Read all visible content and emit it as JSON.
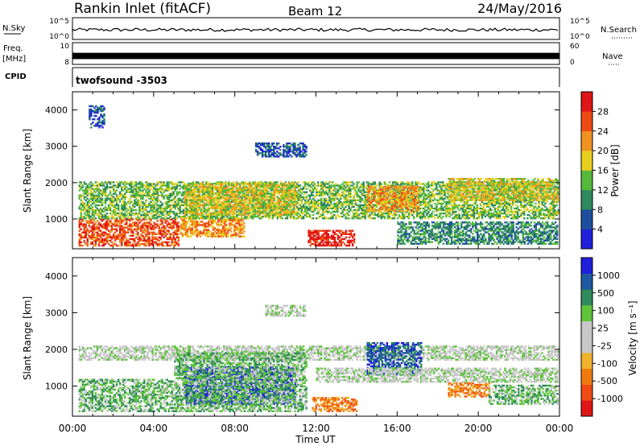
{
  "header": {
    "station": "Rankin Inlet (fitACF)",
    "beam": "Beam 12",
    "date": "24/May/2016"
  },
  "top_panels": {
    "nsky_label": "N.Sky",
    "nsky_ticks": [
      "10^5",
      "10^0"
    ],
    "nsearch_label": "N.Search",
    "nsearch_ticks": [
      "10^5",
      "10^0"
    ],
    "freq_label_1": "Freq.",
    "freq_label_2": "[MHz]",
    "freq_ticks": [
      "10",
      "8"
    ],
    "nave_label": "Nave",
    "nave_ticks": [
      "60",
      "0"
    ],
    "cpid_label": "CPID",
    "cpid_value": "twofsound -3503"
  },
  "chart_data": [
    {
      "type": "heatmap",
      "name": "power-panel",
      "ylabel": "Slant Range [km]",
      "yticks": [
        "1000",
        "2000",
        "3000",
        "4000"
      ],
      "ylim": [
        180,
        4500
      ],
      "xlim_hours": [
        0,
        24
      ],
      "colorbar_label": "Power [dB]",
      "colorbar_ticks": [
        "4",
        "8",
        "12",
        "16",
        "20",
        "24",
        "28"
      ],
      "colors": [
        "#1f1fdc",
        "#1d4f9e",
        "#2e8a5e",
        "#55b93a",
        "#e8cf1c",
        "#f09320",
        "#f04a14",
        "#e01515"
      ],
      "regions": [
        {
          "t0": 0.3,
          "t1": 5.2,
          "r0": 250,
          "r1": 1000,
          "level": 6
        },
        {
          "t0": 5.3,
          "t1": 8.5,
          "r0": 500,
          "r1": 1000,
          "level": 5
        },
        {
          "t0": 11.6,
          "t1": 13.9,
          "r0": 250,
          "r1": 700,
          "level": 7
        },
        {
          "t0": 0.3,
          "t1": 23.9,
          "r0": 1000,
          "r1": 2000,
          "level": 3
        },
        {
          "t0": 14.5,
          "t1": 17.0,
          "r0": 1200,
          "r1": 1900,
          "level": 5
        },
        {
          "t0": 18.5,
          "t1": 23.9,
          "r0": 1500,
          "r1": 2100,
          "level": 4
        },
        {
          "t0": 9.0,
          "t1": 11.5,
          "r0": 2700,
          "r1": 3100,
          "level": 1
        },
        {
          "t0": 0.8,
          "t1": 1.6,
          "r0": 3500,
          "r1": 4100,
          "level": 1
        },
        {
          "t0": 5.5,
          "t1": 11.0,
          "r0": 1100,
          "r1": 2000,
          "level": 4
        },
        {
          "t0": 16.0,
          "t1": 23.9,
          "r0": 300,
          "r1": 900,
          "level": 2
        }
      ]
    },
    {
      "type": "heatmap",
      "name": "velocity-panel",
      "ylabel": "Slant Range [km]",
      "yticks": [
        "1000",
        "2000",
        "3000",
        "4000"
      ],
      "ylim": [
        180,
        4500
      ],
      "xlim_hours": [
        0,
        24
      ],
      "xticks": [
        "00:00",
        "04:00",
        "08:00",
        "12:00",
        "16:00",
        "20:00",
        "00:00"
      ],
      "xlabel": "Time UT",
      "colorbar_label": "Velocity [m s⁻¹]",
      "colorbar_ticks": [
        "1000",
        "500",
        "100",
        "25",
        "-25",
        "-100",
        "-500",
        "-1000"
      ],
      "colors": [
        "#1f1fdc",
        "#1d5aa0",
        "#2f8a5c",
        "#5fc43c",
        "#c8c8c8",
        "#c8c8c8",
        "#f0b22a",
        "#f07a10",
        "#f04a14",
        "#e01515"
      ],
      "regions": [
        {
          "t0": 0.3,
          "t1": 23.9,
          "r0": 1700,
          "r1": 2100,
          "level": 4
        },
        {
          "t0": 0.3,
          "t1": 5.0,
          "r0": 300,
          "r1": 1200,
          "level": 3
        },
        {
          "t0": 5.5,
          "t1": 11.0,
          "r0": 500,
          "r1": 1500,
          "level": 0
        },
        {
          "t0": 5.0,
          "t1": 11.5,
          "r0": 300,
          "r1": 1900,
          "level": 3
        },
        {
          "t0": 11.8,
          "t1": 14.0,
          "r0": 300,
          "r1": 700,
          "level": 7
        },
        {
          "t0": 14.5,
          "t1": 17.2,
          "r0": 1300,
          "r1": 2200,
          "level": 1
        },
        {
          "t0": 18.5,
          "t1": 20.5,
          "r0": 700,
          "r1": 1100,
          "level": 7
        },
        {
          "t0": 9.5,
          "t1": 11.5,
          "r0": 2900,
          "r1": 3200,
          "level": 4
        },
        {
          "t0": 20.5,
          "t1": 23.9,
          "r0": 500,
          "r1": 1000,
          "level": 3
        },
        {
          "t0": 12.0,
          "t1": 23.9,
          "r0": 1100,
          "r1": 1500,
          "level": 4
        }
      ]
    }
  ]
}
